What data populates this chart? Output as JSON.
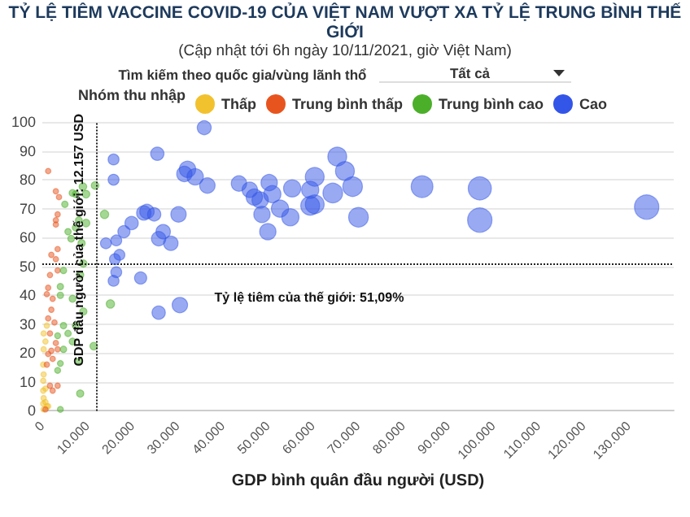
{
  "chart_data": {
    "type": "bubble",
    "title": "TỶ LỆ TIÊM VACCINE COVID-19 CỦA VIỆT NAM VƯỢT XA TỶ LỆ TRUNG BÌNH THẾ GIỚI",
    "subtitle": "(Cập nhật tới 6h ngày 10/11/2021, giờ Việt Nam)",
    "xlabel": "GDP bình quân đầu người (USD)",
    "legend_title": "Nhóm thu nhập",
    "annotations": [
      "Tìm kiếm theo quốc gia/vùng lãnh thổ",
      "Tất cả"
    ],
    "legend": "top",
    "grid": "y",
    "marker": "circle",
    "xlim": [
      0,
      140000
    ],
    "xticks": [
      0,
      {
        "value": 10000,
        "label": "10.000"
      },
      {
        "value": 20000,
        "label": "20.000"
      },
      {
        "value": 30000,
        "label": "30.000"
      },
      {
        "value": 40000,
        "label": "40.000"
      },
      {
        "value": 50000,
        "label": "50.000"
      },
      {
        "value": 60000,
        "label": "60.000"
      },
      {
        "value": 70000,
        "label": "70.000"
      },
      {
        "value": 80000,
        "label": "80.000"
      },
      {
        "value": 90000,
        "label": "90.000"
      },
      {
        "value": 100000,
        "label": "100.000"
      },
      {
        "value": 110000,
        "label": "110.000"
      },
      {
        "value": 120000,
        "label": "120.000"
      },
      {
        "value": 130000,
        "label": "130.000"
      }
    ],
    "ylim": [
      0,
      100
    ],
    "yticks": [
      0,
      10,
      20,
      30,
      40,
      50,
      60,
      70,
      80,
      90,
      100
    ],
    "ref_lines": [
      {
        "axis": "x",
        "value": 12157,
        "label": "GDP đầu người của thế giới: 12.157 USD",
        "line_style": "dotted"
      },
      {
        "axis": "y",
        "value": 51.09,
        "label": "Tỷ lệ tiêm của thế giới: 51,09%",
        "line_style": "dotted"
      }
    ],
    "series": [
      {
        "name": "Thấp",
        "color": "#f2c12e",
        "x": [
          1000,
          300,
          700,
          300,
          200,
          300,
          200,
          700,
          200,
          300,
          200,
          1000,
          300,
          1300,
          700
        ],
        "values": [
          29.5,
          26.8,
          24,
          21.3,
          16,
          12.6,
          10.4,
          7.7,
          7,
          4.4,
          2.5,
          1.6,
          0.5,
          1.6,
          3
        ],
        "sizes": [
          0.05,
          0.05,
          0.05,
          0.05,
          0.05,
          0.05,
          0.05,
          0.05,
          0.05,
          0.05,
          0.05,
          0.05,
          0.05,
          0.05,
          0.05
        ]
      },
      {
        "name": "Trung bình thấp",
        "color": "#e8541e",
        "x": [
          1300,
          3000,
          3700,
          3400,
          3000,
          3000,
          3400,
          2000,
          3000,
          3400,
          1700,
          1300,
          2300,
          1000,
          2000,
          1300,
          2700,
          1700,
          3000,
          3400,
          2000,
          1300,
          2300,
          1000,
          1700,
          2300,
          700,
          3400
        ],
        "values": [
          83,
          76,
          74,
          68,
          66,
          64.5,
          56,
          54,
          52.5,
          48.6,
          47,
          42.6,
          38.8,
          40.4,
          35,
          32,
          30.6,
          26.8,
          23.5,
          21.3,
          20.8,
          19.7,
          18,
          16,
          8.7,
          7,
          0.5,
          8.7
        ],
        "sizes": [
          0.05,
          0.05,
          0.05,
          0.05,
          0.05,
          0.05,
          0.05,
          0.05,
          0.05,
          0.05,
          0.05,
          0.05,
          0.05,
          0.05,
          0.05,
          0.05,
          0.05,
          0.05,
          0.05,
          0.05,
          0.05,
          0.05,
          0.05,
          0.05,
          0.05,
          0.05,
          0.05,
          0.05
        ]
      },
      {
        "name": "Trung bình cao",
        "color": "#4caf2a",
        "x": [
          15100,
          13800,
          11700,
          9000,
          7400,
          9700,
          6700,
          5000,
          8100,
          9700,
          7400,
          5700,
          6400,
          8700,
          9100,
          8400,
          4700,
          4000,
          6700,
          4000,
          9100,
          7400,
          4700,
          5700,
          6700,
          3400,
          4700,
          4000,
          8100,
          11400,
          8400,
          4000,
          3400
        ],
        "values": [
          37,
          68,
          78,
          77.6,
          75,
          75,
          75.4,
          71.5,
          66,
          65,
          63.4,
          62,
          59.6,
          58,
          51,
          47,
          48.6,
          43,
          38.8,
          40,
          34.4,
          29.5,
          29.5,
          26.8,
          24,
          26,
          21.3,
          16.4,
          17,
          22.4,
          6,
          0.5,
          14
        ],
        "sizes": [
          0.12,
          0.12,
          0.1,
          0.1,
          0.08,
          0.1,
          0.08,
          0.07,
          0.08,
          0.1,
          0.08,
          0.07,
          0.08,
          0.09,
          0.09,
          0.09,
          0.07,
          0.07,
          0.08,
          0.07,
          0.09,
          0.08,
          0.07,
          0.07,
          0.08,
          0.06,
          0.07,
          0.06,
          0.08,
          0.1,
          0.09,
          0.06,
          0.06
        ]
      },
      {
        "name": "Cao",
        "color": "#3355e8",
        "x": [
          35900,
          36600,
          43600,
          46000,
          47000,
          48300,
          50300,
          51000,
          48700,
          50000,
          52700,
          55000,
          55400,
          59400,
          60400,
          59400,
          60400,
          64400,
          65400,
          67100,
          68800,
          70100,
          84200,
          97000,
          97000,
          134000,
          15800,
          15800,
          14100,
          16400,
          17100,
          16100,
          16400,
          15800,
          18100,
          19800,
          22500,
          23200,
          24800,
          25500,
          25800,
          26800,
          28500,
          30200,
          21800,
          25800,
          30500,
          31500,
          32200,
          33900
        ],
        "values": [
          98,
          78,
          78.7,
          76.5,
          74,
          73,
          79,
          75,
          68,
          62,
          70,
          67,
          77,
          76.5,
          81,
          71,
          71.5,
          75.4,
          88,
          83,
          77.6,
          67,
          77.6,
          77,
          66,
          70.5,
          87,
          80,
          58,
          59,
          54,
          52.5,
          48,
          45,
          62,
          65,
          68.5,
          69,
          68,
          89,
          59.6,
          62,
          58,
          68,
          46,
          34,
          36.6,
          82,
          83.6,
          81
        ],
        "sizes": [
          0.33,
          0.4,
          0.4,
          0.4,
          0.45,
          0.45,
          0.45,
          0.5,
          0.45,
          0.45,
          0.5,
          0.5,
          0.5,
          0.5,
          0.6,
          0.6,
          0.6,
          0.65,
          0.6,
          0.6,
          0.65,
          0.65,
          0.8,
          0.9,
          1,
          1,
          0.2,
          0.2,
          0.2,
          0.2,
          0.2,
          0.2,
          0.2,
          0.2,
          0.25,
          0.3,
          0.35,
          0.35,
          0.3,
          0.3,
          0.35,
          0.35,
          0.35,
          0.4,
          0.25,
          0.3,
          0.4,
          0.4,
          0.45,
          0.45
        ]
      }
    ]
  }
}
